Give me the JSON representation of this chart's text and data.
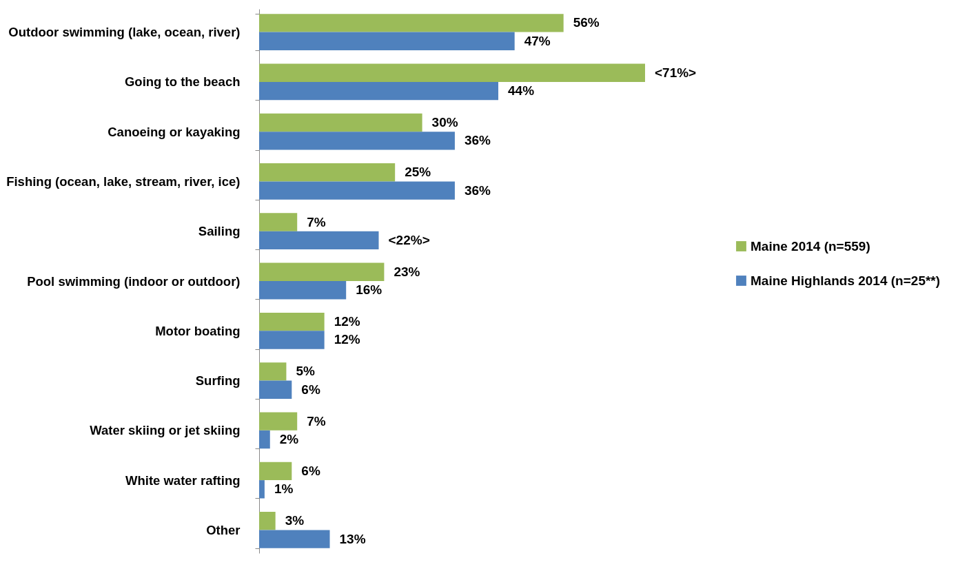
{
  "chart_data": {
    "type": "bar",
    "orientation": "horizontal",
    "legend": "right",
    "categories": [
      "Outdoor swimming (lake, ocean, river)",
      "Going to the beach",
      "Canoeing or kayaking",
      "Fishing (ocean, lake, stream, river, ice)",
      "Sailing",
      "Pool swimming (indoor or outdoor)",
      "Motor boating",
      "Surfing",
      "Water skiing or jet skiing",
      "White water rafting",
      "Other"
    ],
    "series": [
      {
        "name": "Maine 2014 (n=559)",
        "color": "#9bbb59",
        "values": [
          56,
          71,
          30,
          25,
          7,
          23,
          12,
          5,
          7,
          6,
          3
        ],
        "value_labels": [
          "56%",
          "<71%>",
          "30%",
          "25%",
          "7%",
          "23%",
          "12%",
          "5%",
          "7%",
          "6%",
          "3%"
        ]
      },
      {
        "name": "Maine Highlands 2014 (n=25**)",
        "color": "#4f81bd",
        "values": [
          47,
          44,
          36,
          36,
          22,
          16,
          12,
          6,
          2,
          1,
          13
        ],
        "value_labels": [
          "47%",
          "44%",
          "36%",
          "36%",
          "<22%>",
          "16%",
          "12%",
          "6%",
          "2%",
          "1%",
          "13%"
        ]
      }
    ]
  }
}
